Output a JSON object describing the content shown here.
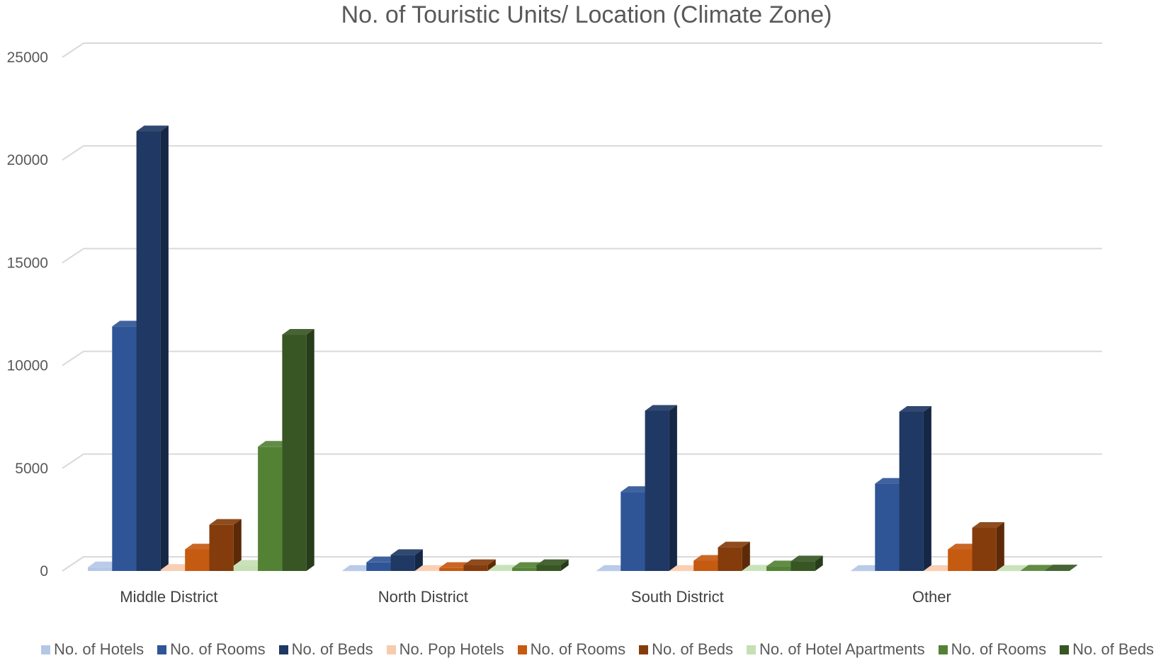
{
  "chart_data": {
    "type": "bar",
    "style": "3d-clustered-column",
    "title": "No. of Touristic Units/ Location (Climate Zone)",
    "xlabel": "",
    "ylabel": "",
    "ylim": [
      0,
      25000
    ],
    "yticks": [
      "0",
      "5000",
      "10000",
      "15000",
      "20000",
      "25000"
    ],
    "grid": true,
    "legend_position": "bottom",
    "categories": [
      "Middle District",
      "North District",
      "South District",
      "Other"
    ],
    "series": [
      {
        "name": "No. of Hotels",
        "color": "#b4c7e7",
        "values": [
          180,
          10,
          10,
          10
        ]
      },
      {
        "name": "No. of Rooms",
        "color": "#2f5597",
        "values": [
          11900,
          420,
          3850,
          4250
        ]
      },
      {
        "name": "No. of Beds",
        "color": "#1f3864",
        "values": [
          21400,
          780,
          7800,
          7750
        ]
      },
      {
        "name": "No. Pop Hotels",
        "color": "#f8cbad",
        "values": [
          60,
          10,
          10,
          10
        ]
      },
      {
        "name": "No. of Rooms",
        "color": "#c55a11",
        "values": [
          1050,
          150,
          500,
          1050
        ]
      },
      {
        "name": "No. of Beds",
        "color": "#843c0c",
        "values": [
          2250,
          290,
          1150,
          2100
        ]
      },
      {
        "name": "No. of Hotel Apartments",
        "color": "#c5e0b4",
        "values": [
          260,
          20,
          20,
          10
        ]
      },
      {
        "name": "No. of Rooms",
        "color": "#548235",
        "values": [
          6050,
          150,
          230,
          20
        ]
      },
      {
        "name": "No. of Beds",
        "color": "#375623",
        "values": [
          11500,
          290,
          470,
          30
        ]
      }
    ]
  }
}
